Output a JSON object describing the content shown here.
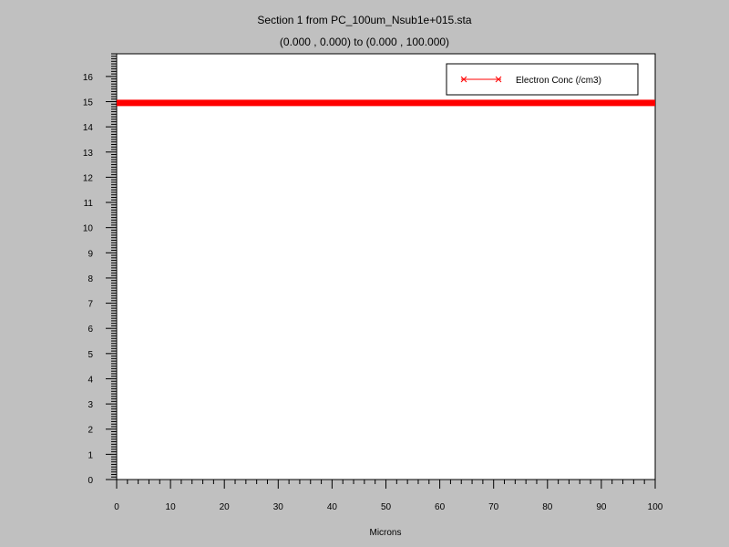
{
  "chart_data": {
    "type": "line",
    "title": "Section 1 from PC_100um_Nsub1e+015.sta",
    "subtitle": "(0.000 , 0.000) to (0.000 , 100.000)",
    "xlabel": "Microns",
    "ylabel": "",
    "xlim": [
      0,
      100
    ],
    "ylim": [
      0,
      16.9
    ],
    "x_ticks": [
      0,
      10,
      20,
      30,
      40,
      50,
      60,
      70,
      80,
      90,
      100
    ],
    "y_ticks": [
      0,
      1,
      2,
      3,
      4,
      5,
      6,
      7,
      8,
      9,
      10,
      11,
      12,
      13,
      14,
      15,
      16
    ],
    "legend_position": "top-right",
    "series": [
      {
        "name": "Electron Conc (/cm3)",
        "color": "#ff0000",
        "x": [
          0,
          100
        ],
        "y": [
          14.95,
          14.95
        ]
      }
    ]
  }
}
